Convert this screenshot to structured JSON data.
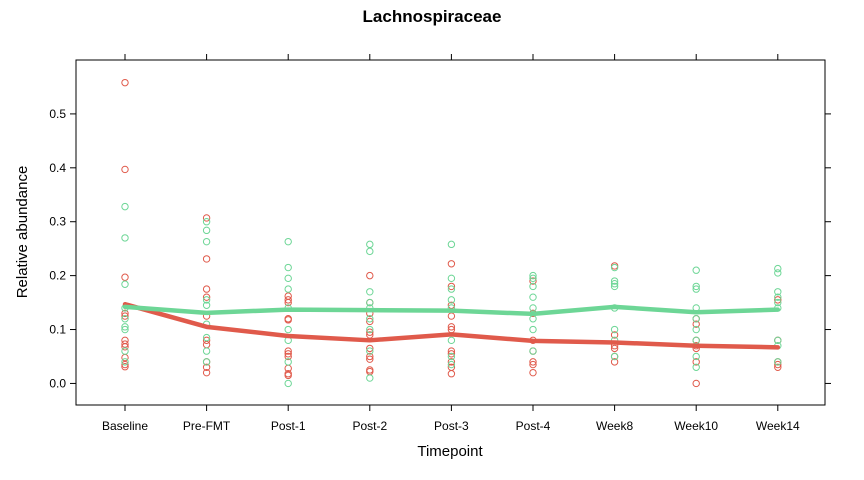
{
  "chart_data": {
    "type": "scatter",
    "title": "Lachnospiraceae",
    "xlabel": "Timepoint",
    "ylabel": "Relative abundance",
    "categories": [
      "Baseline",
      "Pre-FMT",
      "Post-1",
      "Post-2",
      "Post-3",
      "Post-4",
      "Week8",
      "Week10",
      "Week14"
    ],
    "yticks": [
      "0.0",
      "0.1",
      "0.2",
      "0.3",
      "0.4",
      "0.5"
    ],
    "ylim": [
      -0.04,
      0.6
    ],
    "grid": false,
    "legend": "none",
    "series": [
      {
        "color": "#e05a4b",
        "line": [
          0.147,
          0.105,
          0.088,
          0.08,
          0.091,
          0.079,
          0.076,
          0.07,
          0.067
        ],
        "points": [
          [
            0.558,
            0.397,
            0.197,
            0.13,
            0.125,
            0.08,
            0.073,
            0.068,
            0.048,
            0.035,
            0.031
          ],
          [
            0.307,
            0.231,
            0.175,
            0.16,
            0.125,
            0.08,
            0.072,
            0.04,
            0.03,
            0.02
          ],
          [
            0.162,
            0.155,
            0.15,
            0.12,
            0.118,
            0.06,
            0.055,
            0.05,
            0.028,
            0.018,
            0.015
          ],
          [
            0.2,
            0.15,
            0.13,
            0.115,
            0.095,
            0.09,
            0.065,
            0.05,
            0.045,
            0.025,
            0.022
          ],
          [
            0.222,
            0.18,
            0.145,
            0.125,
            0.105,
            0.1,
            0.06,
            0.055,
            0.04,
            0.03,
            0.018
          ],
          [
            0.19,
            0.13,
            0.08,
            0.06,
            0.04,
            0.035,
            0.02
          ],
          [
            0.218,
            0.09,
            0.07,
            0.065,
            0.05,
            0.04
          ],
          [
            0.12,
            0.11,
            0.08,
            0.07,
            0.065,
            0.04,
            0.0
          ],
          [
            0.155,
            0.08,
            0.04,
            0.035,
            0.03
          ]
        ]
      },
      {
        "color": "#6dd696",
        "line": [
          0.142,
          0.131,
          0.137,
          0.136,
          0.135,
          0.129,
          0.142,
          0.132,
          0.137
        ],
        "points": [
          [
            0.328,
            0.27,
            0.184,
            0.14,
            0.12,
            0.105,
            0.1,
            0.06,
            0.04
          ],
          [
            0.3,
            0.284,
            0.263,
            0.155,
            0.145,
            0.11,
            0.085,
            0.06,
            0.04
          ],
          [
            0.263,
            0.215,
            0.195,
            0.175,
            0.14,
            0.1,
            0.08,
            0.04,
            0.0
          ],
          [
            0.258,
            0.245,
            0.17,
            0.15,
            0.14,
            0.12,
            0.1,
            0.06,
            0.01
          ],
          [
            0.258,
            0.195,
            0.175,
            0.155,
            0.14,
            0.08,
            0.05,
            0.035
          ],
          [
            0.2,
            0.195,
            0.18,
            0.16,
            0.14,
            0.12,
            0.1,
            0.06
          ],
          [
            0.215,
            0.19,
            0.185,
            0.18,
            0.14,
            0.1,
            0.08,
            0.05
          ],
          [
            0.21,
            0.18,
            0.175,
            0.14,
            0.12,
            0.1,
            0.08,
            0.05,
            0.03
          ],
          [
            0.213,
            0.205,
            0.17,
            0.16,
            0.15,
            0.14,
            0.08,
            0.07,
            0.04
          ]
        ]
      }
    ]
  }
}
